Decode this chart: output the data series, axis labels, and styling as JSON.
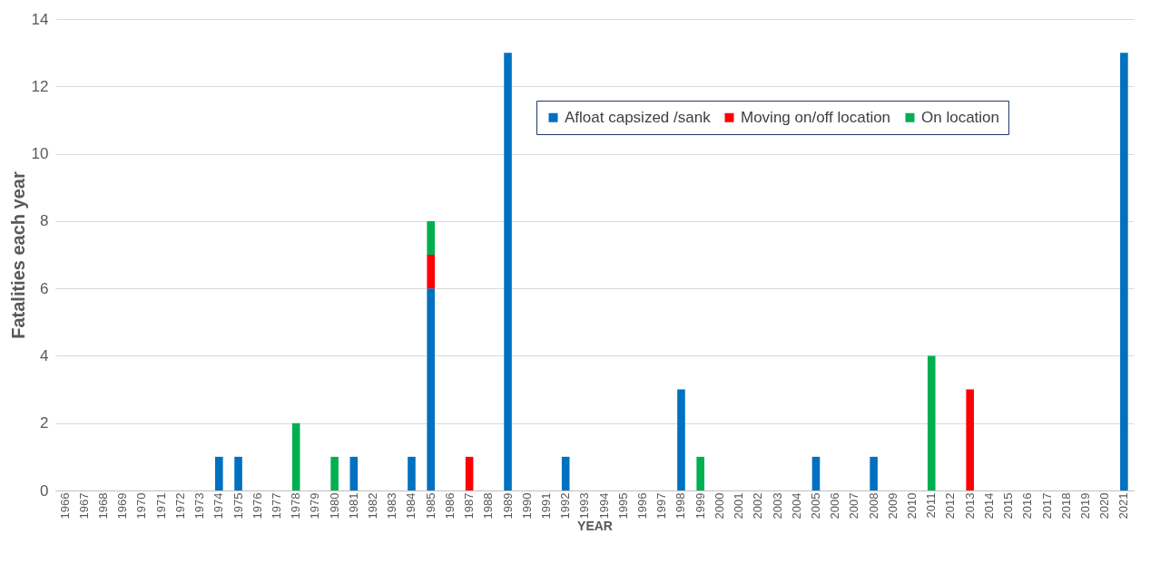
{
  "chart_data": {
    "type": "bar",
    "stacked": true,
    "xlabel": "YEAR",
    "ylabel": "Fatalities each year",
    "categories": [
      "1966",
      "1967",
      "1968",
      "1969",
      "1970",
      "1971",
      "1972",
      "1973",
      "1974",
      "1975",
      "1976",
      "1977",
      "1978",
      "1979",
      "1980",
      "1981",
      "1982",
      "1983",
      "1984",
      "1985",
      "1986",
      "1987",
      "1988",
      "1989",
      "1990",
      "1991",
      "1992",
      "1993",
      "1994",
      "1995",
      "1996",
      "1997",
      "1998",
      "1999",
      "2000",
      "2001",
      "2002",
      "2003",
      "2004",
      "2005",
      "2006",
      "2007",
      "2008",
      "2009",
      "2010",
      "2011",
      "2012",
      "2013",
      "2014",
      "2015",
      "2016",
      "2017",
      "2018",
      "2019",
      "2020",
      "2021"
    ],
    "series": [
      {
        "name": "Afloat capsized /sank",
        "color": "#0070c0",
        "values": [
          0,
          0,
          0,
          0,
          0,
          0,
          0,
          0,
          1,
          1,
          0,
          0,
          0,
          0,
          0,
          1,
          0,
          0,
          1,
          6,
          0,
          0,
          0,
          13,
          0,
          0,
          1,
          0,
          0,
          0,
          0,
          0,
          3,
          0,
          0,
          0,
          0,
          0,
          0,
          1,
          0,
          0,
          1,
          0,
          0,
          0,
          0,
          0,
          0,
          0,
          0,
          0,
          0,
          0,
          0,
          13
        ]
      },
      {
        "name": "Moving on/off location",
        "color": "#ff0000",
        "values": [
          0,
          0,
          0,
          0,
          0,
          0,
          0,
          0,
          0,
          0,
          0,
          0,
          0,
          0,
          0,
          0,
          0,
          0,
          0,
          1,
          0,
          1,
          0,
          0,
          0,
          0,
          0,
          0,
          0,
          0,
          0,
          0,
          0,
          0,
          0,
          0,
          0,
          0,
          0,
          0,
          0,
          0,
          0,
          0,
          0,
          0,
          0,
          3,
          0,
          0,
          0,
          0,
          0,
          0,
          0,
          0
        ]
      },
      {
        "name": "On location",
        "color": "#00b050",
        "values": [
          0,
          0,
          0,
          0,
          0,
          0,
          0,
          0,
          0,
          0,
          0,
          0,
          2,
          0,
          1,
          0,
          0,
          0,
          0,
          1,
          0,
          0,
          0,
          0,
          0,
          0,
          0,
          0,
          0,
          0,
          0,
          0,
          0,
          1,
          0,
          0,
          0,
          0,
          0,
          0,
          0,
          0,
          0,
          0,
          0,
          4,
          0,
          0,
          0,
          0,
          0,
          0,
          0,
          0,
          0,
          0
        ]
      }
    ],
    "ylim": [
      0,
      14
    ],
    "yticks": [
      0,
      2,
      4,
      6,
      8,
      10,
      12,
      14
    ],
    "grid": "y",
    "legend": "top right"
  }
}
